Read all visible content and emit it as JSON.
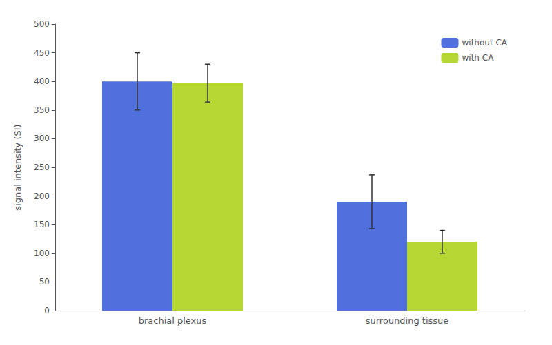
{
  "chart_data": {
    "type": "bar",
    "categories": [
      "brachial plexus",
      "surrounding tissue"
    ],
    "series": [
      {
        "name": "without CA",
        "values": [
          400,
          190
        ],
        "errors": [
          50,
          47
        ]
      },
      {
        "name": "with CA",
        "values": [
          397,
          120
        ],
        "errors": [
          33,
          20
        ]
      }
    ],
    "ylabel": "signal intensity (SI)",
    "ylim": [
      0,
      500
    ],
    "yticks": [
      0,
      50,
      100,
      150,
      200,
      250,
      300,
      350,
      400,
      450,
      500
    ],
    "grid": false,
    "legend": "upper right"
  }
}
